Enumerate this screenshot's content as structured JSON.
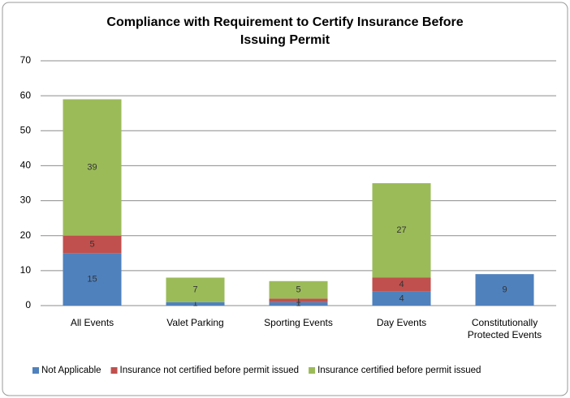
{
  "chart_data": {
    "type": "stacked_bar",
    "title": "Compliance with Requirement to Certify Insurance Before Issuing Permit",
    "categories": [
      "All Events",
      "Valet Parking",
      "Sporting Events",
      "Day Events",
      "Constitutionally Protected Events"
    ],
    "series": [
      {
        "name": "Not Applicable",
        "color": "#4f81bd",
        "values": [
          15,
          1,
          1,
          4,
          9
        ]
      },
      {
        "name": "Insurance not certified before permit issued",
        "color": "#c0504d",
        "values": [
          5,
          null,
          1,
          4,
          null
        ]
      },
      {
        "name": "Insurance certified before permit issued",
        "color": "#9bbb59",
        "values": [
          39,
          7,
          5,
          27,
          null
        ]
      }
    ],
    "ylim": [
      0,
      70
    ],
    "yticks": [
      0,
      10,
      20,
      30,
      40,
      50,
      60,
      70
    ],
    "grid": true,
    "legend": "bottom"
  }
}
